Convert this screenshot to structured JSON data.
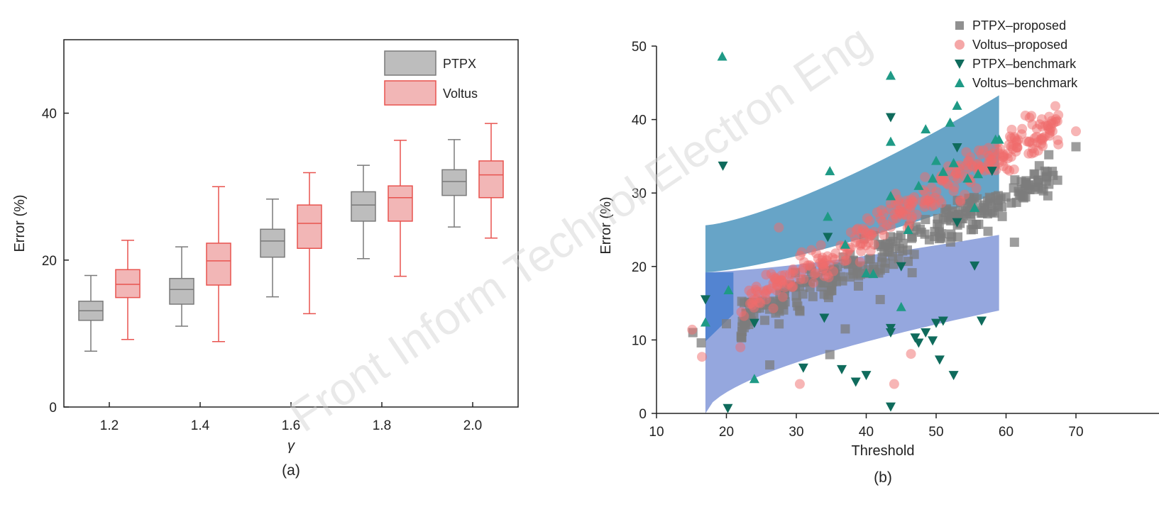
{
  "watermark": "Front Inform Technol Electron Eng",
  "chart_data": [
    {
      "type": "box",
      "caption": "(a)",
      "xlabel": "γ",
      "ylabel": "Error (%)",
      "categories": [
        "1.2",
        "1.4",
        "1.6",
        "1.8",
        "2.0"
      ],
      "ylim": [
        0,
        50
      ],
      "yticks": [
        0,
        20,
        40
      ],
      "legend_position": "top-right",
      "series": [
        {
          "name": "PTPX",
          "color": "#7a7a7a",
          "fill": "#bdbdbd",
          "boxes": [
            {
              "min": 7.6,
              "q1": 11.8,
              "median": 13.1,
              "q3": 14.4,
              "max": 17.9
            },
            {
              "min": 11.0,
              "q1": 14.0,
              "median": 16.0,
              "q3": 17.5,
              "max": 21.8
            },
            {
              "min": 15.0,
              "q1": 20.4,
              "median": 22.6,
              "q3": 24.2,
              "max": 28.3
            },
            {
              "min": 20.2,
              "q1": 25.3,
              "median": 27.5,
              "q3": 29.3,
              "max": 32.9
            },
            {
              "min": 24.5,
              "q1": 28.8,
              "median": 30.7,
              "q3": 32.3,
              "max": 36.4
            }
          ]
        },
        {
          "name": "Voltus",
          "color": "#e8534f",
          "fill": "#f2b6b6",
          "boxes": [
            {
              "min": 9.2,
              "q1": 14.9,
              "median": 16.7,
              "q3": 18.7,
              "max": 22.7
            },
            {
              "min": 8.9,
              "q1": 16.6,
              "median": 19.9,
              "q3": 22.3,
              "max": 30.0
            },
            {
              "min": 12.7,
              "q1": 21.6,
              "median": 25.0,
              "q3": 27.5,
              "max": 31.9
            },
            {
              "min": 17.8,
              "q1": 25.3,
              "median": 28.5,
              "q3": 30.1,
              "max": 36.3
            },
            {
              "min": 23.0,
              "q1": 28.5,
              "median": 31.6,
              "q3": 33.5,
              "max": 38.6
            }
          ]
        }
      ]
    },
    {
      "type": "scatter",
      "caption": "(b)",
      "xlabel": "Threshold",
      "ylabel": "Error (%)",
      "xlim": [
        10,
        70
      ],
      "ylim": [
        0,
        50
      ],
      "xticks": [
        10,
        20,
        30,
        40,
        50,
        60,
        70
      ],
      "yticks": [
        0,
        10,
        20,
        30,
        40,
        50
      ],
      "legend_position": "top-right",
      "bands": [
        {
          "color": "#5f9fc4",
          "x": [
            17,
            59
          ],
          "lower": [
            19.2,
            30.0
          ],
          "upper": [
            25.6,
            43.3
          ]
        },
        {
          "color": "#8fa2dc",
          "x": [
            17,
            59
          ],
          "lower": [
            0,
            14.0
          ],
          "upper": [
            19.2,
            24.3
          ]
        },
        {
          "color": "#4f82d0",
          "x": [
            17,
            21
          ],
          "lower": [
            9.8,
            13.5
          ],
          "upper": [
            19.2,
            19.2
          ]
        }
      ],
      "series": [
        {
          "name": "PTPX–proposed",
          "marker": "square",
          "color": "#7c7c7c",
          "trend": {
            "x": [
              15,
              70
            ],
            "slope": 0.44,
            "intercept": 3.0,
            "spread": 3.2,
            "count": 280
          },
          "points": [
            [
              15.2,
              11.0
            ],
            [
              16.4,
              9.6
            ],
            [
              70.0,
              36.3
            ],
            [
              61.2,
              23.3
            ],
            [
              34.8,
              8.0
            ],
            [
              26.2,
              6.6
            ],
            [
              20.0,
              12.2
            ],
            [
              55.0,
              25.0
            ],
            [
              42.0,
              15.5
            ],
            [
              37.0,
              11.5
            ]
          ]
        },
        {
          "name": "Voltus–proposed",
          "marker": "circle",
          "color": "#ef6c6c",
          "trend": {
            "x": [
              15,
              70
            ],
            "slope": 0.55,
            "intercept": 2.5,
            "spread": 3.0,
            "count": 320
          },
          "points": [
            [
              15.1,
              11.4
            ],
            [
              16.5,
              7.7
            ],
            [
              70.0,
              38.4
            ],
            [
              44.0,
              4.0
            ],
            [
              46.4,
              8.1
            ],
            [
              30.5,
              4.0
            ],
            [
              27.5,
              25.3
            ],
            [
              65.0,
              37.3
            ],
            [
              56.0,
              33.0
            ],
            [
              22.0,
              9.0
            ]
          ]
        },
        {
          "name": "PTPX–benchmark",
          "marker": "triangle-down",
          "color": "#0f6b5c",
          "points": [
            [
              17.0,
              15.5
            ],
            [
              19.5,
              33.7
            ],
            [
              20.2,
              0.7
            ],
            [
              24.0,
              12.3
            ],
            [
              31.0,
              6.2
            ],
            [
              34.0,
              13.0
            ],
            [
              34.5,
              24.0
            ],
            [
              36.5,
              6.0
            ],
            [
              38.5,
              4.3
            ],
            [
              40.0,
              5.2
            ],
            [
              43.5,
              40.3
            ],
            [
              43.5,
              11.6
            ],
            [
              43.5,
              11.0
            ],
            [
              43.5,
              0.9
            ],
            [
              45.0,
              20.0
            ],
            [
              47.0,
              10.3
            ],
            [
              47.5,
              9.6
            ],
            [
              48.5,
              11.0
            ],
            [
              49.5,
              9.9
            ],
            [
              50.5,
              7.3
            ],
            [
              50.0,
              12.3
            ],
            [
              51.0,
              12.6
            ],
            [
              53.0,
              36.2
            ],
            [
              52.5,
              5.2
            ],
            [
              55.5,
              20.1
            ],
            [
              56.5,
              12.6
            ],
            [
              53.0,
              26.0
            ],
            [
              58.0,
              33.0
            ]
          ]
        },
        {
          "name": "Voltus–benchmark",
          "marker": "triangle-up",
          "color": "#1f9a86",
          "points": [
            [
              17.0,
              12.4
            ],
            [
              19.4,
              48.6
            ],
            [
              20.3,
              16.8
            ],
            [
              24.0,
              4.7
            ],
            [
              34.5,
              26.8
            ],
            [
              34.8,
              33.0
            ],
            [
              37.0,
              23.0
            ],
            [
              40.0,
              19.1
            ],
            [
              41.0,
              19.0
            ],
            [
              43.5,
              46.0
            ],
            [
              43.5,
              37.0
            ],
            [
              43.5,
              29.6
            ],
            [
              45.0,
              14.5
            ],
            [
              46.0,
              25.0
            ],
            [
              47.5,
              31.0
            ],
            [
              48.5,
              38.7
            ],
            [
              49.5,
              32.0
            ],
            [
              50.0,
              34.4
            ],
            [
              51.0,
              32.9
            ],
            [
              52.0,
              39.6
            ],
            [
              53.0,
              41.9
            ],
            [
              54.5,
              32.0
            ],
            [
              56.0,
              32.6
            ],
            [
              55.5,
              28.0
            ],
            [
              58.5,
              37.3
            ],
            [
              59.0,
              37.3
            ],
            [
              52.5,
              34.1
            ]
          ]
        }
      ]
    }
  ]
}
